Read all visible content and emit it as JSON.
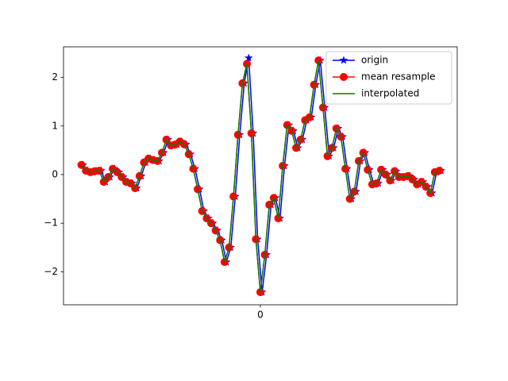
{
  "chart_data": {
    "type": "line",
    "xlim": [
      -1.1,
      1.1
    ],
    "xticks": [
      0
    ],
    "ylim": [
      -2.68,
      2.63
    ],
    "yticks": [
      {
        "value": -2,
        "label": "−2"
      },
      {
        "value": -1,
        "label": "−1"
      },
      0,
      1,
      2
    ],
    "legend": "upper right",
    "series": [
      {
        "name": "origin",
        "color": "#0000ff",
        "marker": "*",
        "x": [
          -0.99,
          -0.965,
          -0.94,
          -0.915,
          -0.89,
          -0.865,
          -0.84,
          -0.815,
          -0.79,
          -0.765,
          -0.74,
          -0.715,
          -0.69,
          -0.665,
          -0.64,
          -0.615,
          -0.59,
          -0.565,
          -0.54,
          -0.515,
          -0.49,
          -0.465,
          -0.44,
          -0.415,
          -0.39,
          -0.365,
          -0.34,
          -0.315,
          -0.29,
          -0.265,
          -0.24,
          -0.215,
          -0.19,
          -0.165,
          -0.14,
          -0.115,
          -0.09,
          -0.065,
          -0.04,
          -0.015,
          0.01,
          0.035,
          0.06,
          0.085,
          0.11,
          0.135,
          0.16,
          0.185,
          0.21,
          0.235,
          0.26,
          0.285,
          0.31,
          0.335,
          0.36,
          0.385,
          0.41,
          0.435,
          0.46,
          0.485,
          0.51,
          0.535,
          0.56,
          0.585,
          0.61,
          0.635,
          0.66,
          0.685,
          0.71,
          0.735,
          0.76,
          0.785,
          0.81,
          0.835,
          0.86,
          0.885,
          0.91,
          0.935,
          0.96,
          0.985,
          1.01
        ],
        "values": [
          0.2,
          0.08,
          0.05,
          0.07,
          0.08,
          -0.15,
          -0.05,
          0.12,
          0.05,
          -0.05,
          -0.15,
          -0.18,
          -0.28,
          -0.03,
          0.25,
          0.33,
          0.3,
          0.28,
          0.45,
          0.72,
          0.6,
          0.62,
          0.68,
          0.62,
          0.42,
          0.12,
          -0.3,
          -0.75,
          -0.9,
          -1.0,
          -1.15,
          -1.35,
          -1.8,
          -1.5,
          -0.45,
          0.82,
          1.88,
          2.4,
          0.85,
          -1.33,
          -2.42,
          -1.65,
          -0.62,
          -0.48,
          -0.9,
          0.18,
          1.02,
          0.9,
          0.55,
          0.72,
          1.12,
          1.18,
          1.85,
          2.35,
          1.38,
          0.38,
          0.55,
          0.95,
          0.78,
          0.12,
          -0.5,
          -0.35,
          0.28,
          0.45,
          0.1,
          -0.2,
          -0.18,
          0.1,
          0.0,
          -0.12,
          0.07,
          -0.05,
          -0.05,
          -0.03,
          -0.1,
          -0.2,
          -0.15,
          -0.25,
          -0.38,
          0.05,
          0.08
        ]
      },
      {
        "name": "mean resample",
        "color": "#ff0000",
        "marker": "o",
        "x": [
          -1,
          -0.975,
          -0.95,
          -0.925,
          -0.9,
          -0.875,
          -0.85,
          -0.825,
          -0.8,
          -0.775,
          -0.75,
          -0.725,
          -0.7,
          -0.675,
          -0.65,
          -0.625,
          -0.6,
          -0.575,
          -0.55,
          -0.525,
          -0.5,
          -0.475,
          -0.45,
          -0.425,
          -0.4,
          -0.375,
          -0.35,
          -0.325,
          -0.3,
          -0.275,
          -0.25,
          -0.225,
          -0.2,
          -0.175,
          -0.15,
          -0.125,
          -0.1,
          -0.075,
          -0.05,
          -0.025,
          0,
          0.025,
          0.05,
          0.075,
          0.1,
          0.125,
          0.15,
          0.175,
          0.2,
          0.225,
          0.25,
          0.275,
          0.3,
          0.325,
          0.35,
          0.375,
          0.4,
          0.425,
          0.45,
          0.475,
          0.5,
          0.525,
          0.55,
          0.575,
          0.6,
          0.625,
          0.65,
          0.675,
          0.7,
          0.725,
          0.75,
          0.775,
          0.8,
          0.825,
          0.85,
          0.875,
          0.9,
          0.925,
          0.95,
          0.975,
          1
        ],
        "values": [
          0.2,
          0.08,
          0.05,
          0.07,
          0.08,
          -0.15,
          -0.05,
          0.12,
          0.05,
          -0.05,
          -0.15,
          -0.18,
          -0.28,
          -0.03,
          0.25,
          0.33,
          0.3,
          0.28,
          0.45,
          0.72,
          0.6,
          0.62,
          0.68,
          0.62,
          0.42,
          0.12,
          -0.3,
          -0.75,
          -0.9,
          -1.0,
          -1.15,
          -1.35,
          -1.8,
          -1.5,
          -0.45,
          0.82,
          1.88,
          2.28,
          0.85,
          -1.33,
          -2.42,
          -1.65,
          -0.62,
          -0.48,
          -0.9,
          0.18,
          1.02,
          0.9,
          0.55,
          0.72,
          1.12,
          1.18,
          1.85,
          2.35,
          1.38,
          0.38,
          0.55,
          0.95,
          0.78,
          0.12,
          -0.5,
          -0.35,
          0.28,
          0.45,
          0.1,
          -0.2,
          -0.18,
          0.1,
          0.0,
          -0.12,
          0.07,
          -0.05,
          -0.05,
          -0.03,
          -0.1,
          -0.2,
          -0.15,
          -0.25,
          -0.38,
          0.05,
          0.08
        ]
      },
      {
        "name": "interpolated",
        "color": "#008000",
        "x": [
          -1,
          -0.975,
          -0.95,
          -0.925,
          -0.9,
          -0.875,
          -0.85,
          -0.825,
          -0.8,
          -0.775,
          -0.75,
          -0.725,
          -0.7,
          -0.675,
          -0.65,
          -0.625,
          -0.6,
          -0.575,
          -0.55,
          -0.525,
          -0.5,
          -0.475,
          -0.45,
          -0.425,
          -0.4,
          -0.375,
          -0.35,
          -0.325,
          -0.3,
          -0.275,
          -0.25,
          -0.225,
          -0.2,
          -0.175,
          -0.15,
          -0.125,
          -0.1,
          -0.075,
          -0.05,
          -0.025,
          0,
          0.025,
          0.05,
          0.075,
          0.1,
          0.125,
          0.15,
          0.175,
          0.2,
          0.225,
          0.25,
          0.275,
          0.3,
          0.325,
          0.35,
          0.375,
          0.4,
          0.425,
          0.45,
          0.475,
          0.5,
          0.525,
          0.55,
          0.575,
          0.6,
          0.625,
          0.65,
          0.675,
          0.7,
          0.725,
          0.75,
          0.775,
          0.8,
          0.825,
          0.85,
          0.875,
          0.9,
          0.925,
          0.95,
          0.975,
          1
        ],
        "values": [
          0.2,
          0.08,
          0.05,
          0.07,
          0.08,
          -0.15,
          -0.05,
          0.12,
          0.05,
          -0.05,
          -0.15,
          -0.18,
          -0.28,
          -0.03,
          0.25,
          0.33,
          0.3,
          0.28,
          0.45,
          0.72,
          0.6,
          0.62,
          0.68,
          0.62,
          0.42,
          0.12,
          -0.3,
          -0.75,
          -0.9,
          -1.0,
          -1.15,
          -1.35,
          -1.8,
          -1.5,
          -0.45,
          0.82,
          1.88,
          2.28,
          0.85,
          -1.33,
          -2.42,
          -1.65,
          -0.62,
          -0.48,
          -0.9,
          0.18,
          1.02,
          0.9,
          0.55,
          0.72,
          1.12,
          1.18,
          1.85,
          2.35,
          1.38,
          0.38,
          0.55,
          0.95,
          0.78,
          0.12,
          -0.5,
          -0.35,
          0.28,
          0.45,
          0.1,
          -0.2,
          -0.18,
          0.1,
          0.0,
          -0.12,
          0.07,
          -0.05,
          -0.05,
          -0.03,
          -0.1,
          -0.2,
          -0.15,
          -0.25,
          -0.38,
          0.05,
          0.08
        ]
      }
    ]
  }
}
